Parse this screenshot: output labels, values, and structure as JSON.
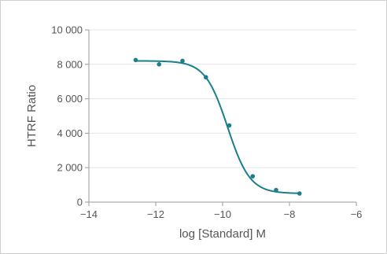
{
  "chart_data": {
    "type": "scatter",
    "title": "",
    "xlabel": "log [Standard] M",
    "ylabel": "HTRF Ratio",
    "xlim": [
      -14,
      -6
    ],
    "ylim": [
      0,
      10000
    ],
    "x_ticks": [
      -14,
      -12,
      -10,
      -8,
      -6
    ],
    "x_tick_labels": [
      "−14",
      "−12",
      "−10",
      "−8",
      "−6"
    ],
    "y_ticks": [
      0,
      2000,
      4000,
      6000,
      8000,
      10000
    ],
    "y_tick_labels": [
      "0",
      "2 000",
      "4 000",
      "6 000",
      "8 000",
      "10 000"
    ],
    "grid": true,
    "colors": {
      "series": "#1a7f8a",
      "grid": "#e6e6e6",
      "axis": "#9a9a9a",
      "text": "#555555"
    },
    "series": [
      {
        "type": "scatter",
        "x": [
          -12.6,
          -11.9,
          -11.2,
          -10.5,
          -9.8,
          -9.1,
          -8.4,
          -7.7
        ],
        "y": [
          8250,
          8000,
          8200,
          7250,
          4450,
          1500,
          700,
          500
        ]
      }
    ],
    "fit_curve": {
      "type": "four-parameter-logistic",
      "top": 8200,
      "bottom": 500,
      "log_ic50": -9.85,
      "hill_slope": -1.3
    }
  }
}
